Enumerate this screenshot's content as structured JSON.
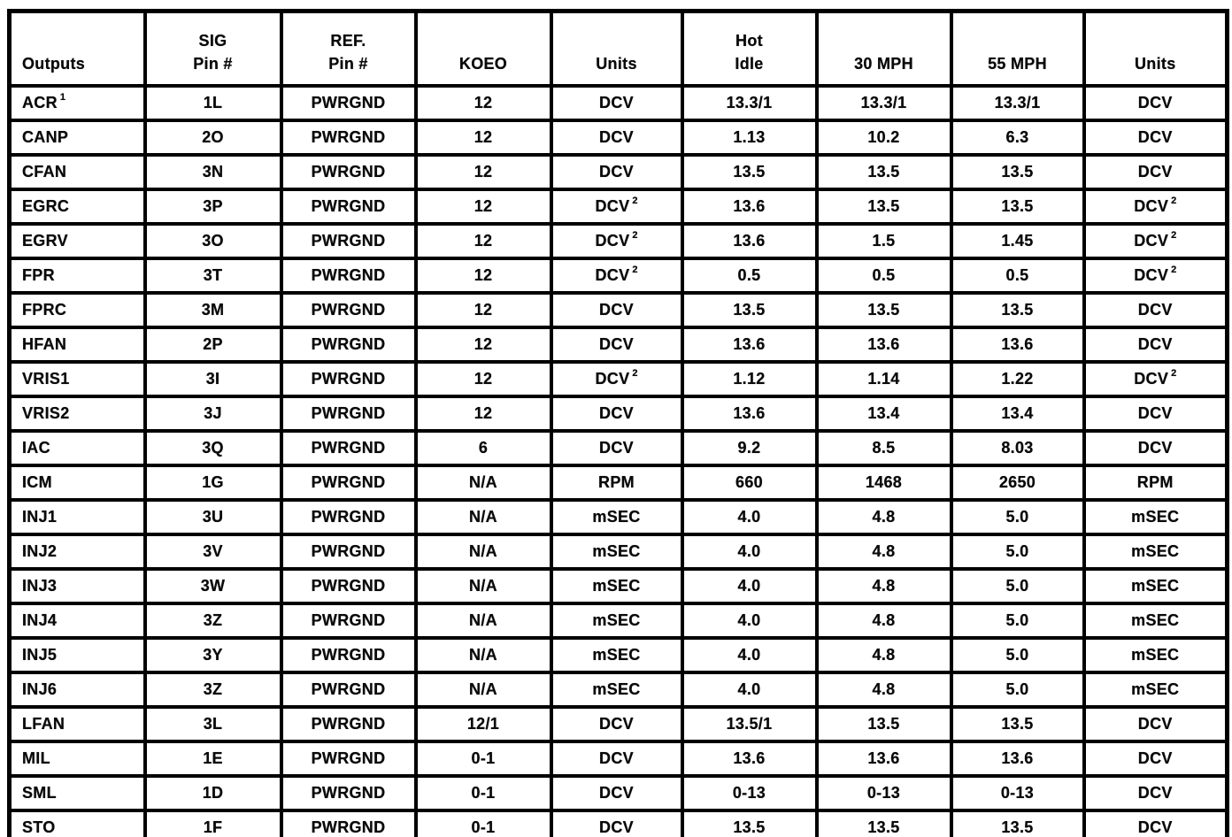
{
  "table": {
    "headers": [
      {
        "id": "outputs",
        "lines": [
          "Outputs"
        ]
      },
      {
        "id": "sig-pin",
        "lines": [
          "SIG",
          "Pin #"
        ]
      },
      {
        "id": "ref-pin",
        "lines": [
          "REF.",
          "Pin #"
        ]
      },
      {
        "id": "koeo",
        "lines": [
          "KOEO"
        ]
      },
      {
        "id": "units-koeo",
        "lines": [
          "Units"
        ]
      },
      {
        "id": "hot-idle",
        "lines": [
          "Hot",
          "Idle"
        ]
      },
      {
        "id": "30-mph",
        "lines": [
          "30 MPH"
        ]
      },
      {
        "id": "55-mph",
        "lines": [
          "55 MPH"
        ]
      },
      {
        "id": "units-drive",
        "lines": [
          "Units"
        ]
      }
    ],
    "rows": [
      {
        "output": "ACR",
        "output_sup": "1",
        "sig_pin": "1L",
        "ref_pin": "PWRGND",
        "koeo": "12",
        "units_koeo": "DCV",
        "units_koeo_sup": "",
        "hot_idle": "13.3/1",
        "mph_30": "13.3/1",
        "mph_55": "13.3/1",
        "units_drive": "DCV",
        "units_drive_sup": ""
      },
      {
        "output": "CANP",
        "output_sup": "",
        "sig_pin": "2O",
        "ref_pin": "PWRGND",
        "koeo": "12",
        "units_koeo": "DCV",
        "units_koeo_sup": "",
        "hot_idle": "1.13",
        "mph_30": "10.2",
        "mph_55": "6.3",
        "units_drive": "DCV",
        "units_drive_sup": ""
      },
      {
        "output": "CFAN",
        "output_sup": "",
        "sig_pin": "3N",
        "ref_pin": "PWRGND",
        "koeo": "12",
        "units_koeo": "DCV",
        "units_koeo_sup": "",
        "hot_idle": "13.5",
        "mph_30": "13.5",
        "mph_55": "13.5",
        "units_drive": "DCV",
        "units_drive_sup": ""
      },
      {
        "output": "EGRC",
        "output_sup": "",
        "sig_pin": "3P",
        "ref_pin": "PWRGND",
        "koeo": "12",
        "units_koeo": "DCV",
        "units_koeo_sup": "2",
        "hot_idle": "13.6",
        "mph_30": "13.5",
        "mph_55": "13.5",
        "units_drive": "DCV",
        "units_drive_sup": "2"
      },
      {
        "output": "EGRV",
        "output_sup": "",
        "sig_pin": "3O",
        "ref_pin": "PWRGND",
        "koeo": "12",
        "units_koeo": "DCV",
        "units_koeo_sup": "2",
        "hot_idle": "13.6",
        "mph_30": "1.5",
        "mph_55": "1.45",
        "units_drive": "DCV",
        "units_drive_sup": "2"
      },
      {
        "output": "FPR",
        "output_sup": "",
        "sig_pin": "3T",
        "ref_pin": "PWRGND",
        "koeo": "12",
        "units_koeo": "DCV",
        "units_koeo_sup": "2",
        "hot_idle": "0.5",
        "mph_30": "0.5",
        "mph_55": "0.5",
        "units_drive": "DCV",
        "units_drive_sup": "2"
      },
      {
        "output": "FPRC",
        "output_sup": "",
        "sig_pin": "3M",
        "ref_pin": "PWRGND",
        "koeo": "12",
        "units_koeo": "DCV",
        "units_koeo_sup": "",
        "hot_idle": "13.5",
        "mph_30": "13.5",
        "mph_55": "13.5",
        "units_drive": "DCV",
        "units_drive_sup": ""
      },
      {
        "output": "HFAN",
        "output_sup": "",
        "sig_pin": "2P",
        "ref_pin": "PWRGND",
        "koeo": "12",
        "units_koeo": "DCV",
        "units_koeo_sup": "",
        "hot_idle": "13.6",
        "mph_30": "13.6",
        "mph_55": "13.6",
        "units_drive": "DCV",
        "units_drive_sup": ""
      },
      {
        "output": "VRIS1",
        "output_sup": "",
        "sig_pin": "3I",
        "ref_pin": "PWRGND",
        "koeo": "12",
        "units_koeo": "DCV",
        "units_koeo_sup": "2",
        "hot_idle": "1.12",
        "mph_30": "1.14",
        "mph_55": "1.22",
        "units_drive": "DCV",
        "units_drive_sup": "2"
      },
      {
        "output": "VRIS2",
        "output_sup": "",
        "sig_pin": "3J",
        "ref_pin": "PWRGND",
        "koeo": "12",
        "units_koeo": "DCV",
        "units_koeo_sup": "",
        "hot_idle": "13.6",
        "mph_30": "13.4",
        "mph_55": "13.4",
        "units_drive": "DCV",
        "units_drive_sup": ""
      },
      {
        "output": "IAC",
        "output_sup": "",
        "sig_pin": "3Q",
        "ref_pin": "PWRGND",
        "koeo": "6",
        "units_koeo": "DCV",
        "units_koeo_sup": "",
        "hot_idle": "9.2",
        "mph_30": "8.5",
        "mph_55": "8.03",
        "units_drive": "DCV",
        "units_drive_sup": ""
      },
      {
        "output": "ICM",
        "output_sup": "",
        "sig_pin": "1G",
        "ref_pin": "PWRGND",
        "koeo": "N/A",
        "units_koeo": "RPM",
        "units_koeo_sup": "",
        "hot_idle": "660",
        "mph_30": "1468",
        "mph_55": "2650",
        "units_drive": "RPM",
        "units_drive_sup": ""
      },
      {
        "output": "INJ1",
        "output_sup": "",
        "sig_pin": "3U",
        "ref_pin": "PWRGND",
        "koeo": "N/A",
        "units_koeo": "mSEC",
        "units_koeo_sup": "",
        "hot_idle": "4.0",
        "mph_30": "4.8",
        "mph_55": "5.0",
        "units_drive": "mSEC",
        "units_drive_sup": ""
      },
      {
        "output": "INJ2",
        "output_sup": "",
        "sig_pin": "3V",
        "ref_pin": "PWRGND",
        "koeo": "N/A",
        "units_koeo": "mSEC",
        "units_koeo_sup": "",
        "hot_idle": "4.0",
        "mph_30": "4.8",
        "mph_55": "5.0",
        "units_drive": "mSEC",
        "units_drive_sup": ""
      },
      {
        "output": "INJ3",
        "output_sup": "",
        "sig_pin": "3W",
        "ref_pin": "PWRGND",
        "koeo": "N/A",
        "units_koeo": "mSEC",
        "units_koeo_sup": "",
        "hot_idle": "4.0",
        "mph_30": "4.8",
        "mph_55": "5.0",
        "units_drive": "mSEC",
        "units_drive_sup": ""
      },
      {
        "output": "INJ4",
        "output_sup": "",
        "sig_pin": "3Z",
        "ref_pin": "PWRGND",
        "koeo": "N/A",
        "units_koeo": "mSEC",
        "units_koeo_sup": "",
        "hot_idle": "4.0",
        "mph_30": "4.8",
        "mph_55": "5.0",
        "units_drive": "mSEC",
        "units_drive_sup": ""
      },
      {
        "output": "INJ5",
        "output_sup": "",
        "sig_pin": "3Y",
        "ref_pin": "PWRGND",
        "koeo": "N/A",
        "units_koeo": "mSEC",
        "units_koeo_sup": "",
        "hot_idle": "4.0",
        "mph_30": "4.8",
        "mph_55": "5.0",
        "units_drive": "mSEC",
        "units_drive_sup": ""
      },
      {
        "output": "INJ6",
        "output_sup": "",
        "sig_pin": "3Z",
        "ref_pin": "PWRGND",
        "koeo": "N/A",
        "units_koeo": "mSEC",
        "units_koeo_sup": "",
        "hot_idle": "4.0",
        "mph_30": "4.8",
        "mph_55": "5.0",
        "units_drive": "mSEC",
        "units_drive_sup": ""
      },
      {
        "output": "LFAN",
        "output_sup": "",
        "sig_pin": "3L",
        "ref_pin": "PWRGND",
        "koeo": "12/1",
        "units_koeo": "DCV",
        "units_koeo_sup": "",
        "hot_idle": "13.5/1",
        "mph_30": "13.5",
        "mph_55": "13.5",
        "units_drive": "DCV",
        "units_drive_sup": ""
      },
      {
        "output": "MIL",
        "output_sup": "",
        "sig_pin": "1E",
        "ref_pin": "PWRGND",
        "koeo": "0-1",
        "units_koeo": "DCV",
        "units_koeo_sup": "",
        "hot_idle": "13.6",
        "mph_30": "13.6",
        "mph_55": "13.6",
        "units_drive": "DCV",
        "units_drive_sup": ""
      },
      {
        "output": "SML",
        "output_sup": "",
        "sig_pin": "1D",
        "ref_pin": "PWRGND",
        "koeo": "0-1",
        "units_koeo": "DCV",
        "units_koeo_sup": "",
        "hot_idle": "0-13",
        "mph_30": "0-13",
        "mph_55": "0-13",
        "units_drive": "DCV",
        "units_drive_sup": ""
      },
      {
        "output": "STO",
        "output_sup": "",
        "sig_pin": "1F",
        "ref_pin": "PWRGND",
        "koeo": "0-1",
        "units_koeo": "DCV",
        "units_koeo_sup": "",
        "hot_idle": "13.5",
        "mph_30": "13.5",
        "mph_55": "13.5",
        "units_drive": "DCV",
        "units_drive_sup": ""
      }
    ]
  }
}
